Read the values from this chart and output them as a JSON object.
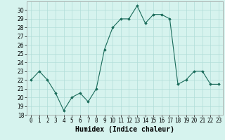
{
  "x": [
    0,
    1,
    2,
    3,
    4,
    5,
    6,
    7,
    8,
    9,
    10,
    11,
    12,
    13,
    14,
    15,
    16,
    17,
    18,
    19,
    20,
    21,
    22,
    23
  ],
  "y": [
    22,
    23,
    22,
    20.5,
    18.5,
    20,
    20.5,
    19.5,
    21,
    25.5,
    28,
    29,
    29,
    30.5,
    28.5,
    29.5,
    29.5,
    29,
    21.5,
    22,
    23,
    23,
    21.5,
    21.5
  ],
  "line_color": "#1a6b5a",
  "marker": "D",
  "markersize": 1.8,
  "linewidth": 0.8,
  "xlabel": "Humidex (Indice chaleur)",
  "xlabel_fontsize": 7,
  "xlabel_fontweight": "bold",
  "ylim": [
    18,
    31
  ],
  "xlim": [
    -0.5,
    23.5
  ],
  "yticks": [
    18,
    19,
    20,
    21,
    22,
    23,
    24,
    25,
    26,
    27,
    28,
    29,
    30
  ],
  "xticks": [
    0,
    1,
    2,
    3,
    4,
    5,
    6,
    7,
    8,
    9,
    10,
    11,
    12,
    13,
    14,
    15,
    16,
    17,
    18,
    19,
    20,
    21,
    22,
    23
  ],
  "xtick_labels": [
    "0",
    "1",
    "2",
    "3",
    "4",
    "5",
    "6",
    "7",
    "8",
    "9",
    "10",
    "11",
    "12",
    "13",
    "14",
    "15",
    "16",
    "17",
    "18",
    "19",
    "20",
    "21",
    "22",
    "23"
  ],
  "background_color": "#d6f3ee",
  "grid_color": "#b0ddd8",
  "tick_fontsize": 5.5
}
